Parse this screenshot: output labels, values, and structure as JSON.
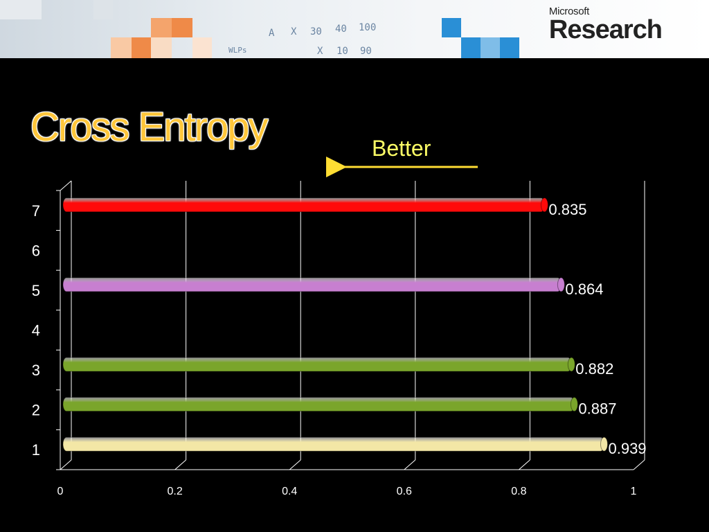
{
  "header": {
    "logo_brand": "Microsoft",
    "logo_product": "Research",
    "sketch_text": [
      "A",
      "X",
      "30",
      "40",
      "100",
      "X",
      "10",
      "90",
      "WLPs"
    ]
  },
  "slide": {
    "title": "Cross Entropy",
    "annotation": "Better",
    "annotation_color": "#ffff66",
    "title_color": "#ffc63a"
  },
  "chart_data": {
    "type": "bar",
    "orientation": "horizontal",
    "categories": [
      "1",
      "2",
      "3",
      "4",
      "5",
      "6",
      "7"
    ],
    "values": [
      0.939,
      0.887,
      0.882,
      null,
      0.864,
      null,
      0.835
    ],
    "value_labels": [
      "0.939",
      "0.887",
      "0.882",
      "",
      "0.864",
      "",
      "0.835"
    ],
    "colors": [
      "#f3e7a6",
      "#7aa52b",
      "#7aa52b",
      null,
      "#c77fd0",
      null,
      "#ff0a0a"
    ],
    "xlim": [
      0,
      1
    ],
    "x_ticks": [
      "0",
      "0.2",
      "0.4",
      "0.6",
      "0.8",
      "1"
    ],
    "x_tick_values": [
      0,
      0.2,
      0.4,
      0.6,
      0.8,
      1
    ],
    "grid": true,
    "legend": "none",
    "title": "",
    "xlabel": "",
    "ylabel": ""
  }
}
